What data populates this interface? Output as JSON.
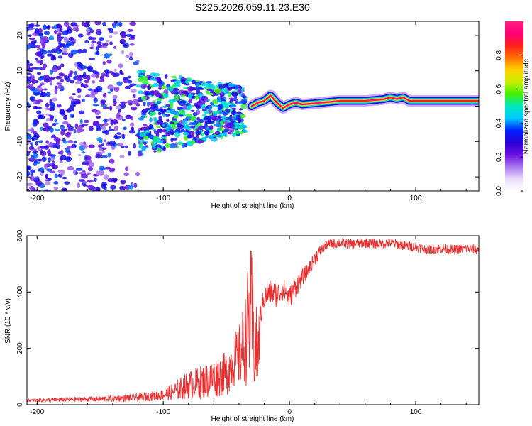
{
  "title": "S225.2026.059.11.23.E30",
  "chart_data": [
    {
      "type": "heatmap",
      "name": "spectrogram",
      "xlabel": "Height of straight line (km)",
      "ylabel": "Frequency (Hz)",
      "xlim": [
        -208,
        150
      ],
      "ylim": [
        -24,
        24
      ],
      "xticks": [
        -200,
        -100,
        0,
        100
      ],
      "xtick_labels": [
        "-200",
        "-100",
        "0",
        "100"
      ],
      "yticks": [
        -20,
        -10,
        0,
        10,
        20
      ],
      "ytick_labels": [
        "-20",
        "-10",
        "0",
        "10",
        "20"
      ],
      "colorbar": {
        "label": "Normalized spectral amplitude",
        "range": [
          0,
          1
        ],
        "ticks": [
          0.0,
          0.2,
          0.4,
          0.6,
          0.8
        ],
        "tick_labels": [
          "0.0",
          "0.2",
          "0.4",
          "0.6",
          "0.8"
        ],
        "colors": [
          "#ffffff",
          "#e9ddfb",
          "#a875f0",
          "#6a10e0",
          "#2a00d8",
          "#0020ff",
          "#00c8ff",
          "#00e8c0",
          "#40f000",
          "#c8f000",
          "#ffd000",
          "#ff7000",
          "#ff1e1e",
          "#ff0078",
          "#ff2080"
        ]
      },
      "ridge": {
        "description": "dominant frequency track",
        "x": [
          -30,
          -25,
          -20,
          -15,
          -10,
          -5,
          0,
          5,
          10,
          20,
          40,
          60,
          75,
          80,
          85,
          90,
          95,
          100,
          110,
          130,
          150
        ],
        "y": [
          0,
          1,
          1.5,
          3,
          1,
          -0.5,
          0.5,
          1,
          0.5,
          0.8,
          1.5,
          1.5,
          2,
          2.5,
          2,
          2.5,
          1.5,
          1.5,
          1.5,
          1.5,
          1.5
        ],
        "peak_amplitude": 0.95
      },
      "noise_regions": [
        {
          "x": [
            -208,
            -120
          ],
          "y": [
            -24,
            24
          ],
          "amplitude": 0.35
        },
        {
          "x": [
            -120,
            -35
          ],
          "y": [
            -14,
            10
          ],
          "amplitude": 0.5
        }
      ]
    },
    {
      "type": "line",
      "name": "snr",
      "xlabel": "Height of straight line (km)",
      "ylabel": "SNR (10 * v/v)",
      "xlim": [
        -208,
        150
      ],
      "ylim": [
        0,
        600
      ],
      "xticks": [
        -200,
        -100,
        0,
        100
      ],
      "xtick_labels": [
        "-200",
        "-100",
        "0",
        "100"
      ],
      "yticks": [
        0,
        200,
        400,
        600
      ],
      "ytick_labels": [
        "0",
        "200",
        "400",
        "600"
      ],
      "color": "#e83030",
      "x": [
        -208,
        -180,
        -150,
        -120,
        -100,
        -90,
        -80,
        -70,
        -60,
        -50,
        -45,
        -40,
        -35,
        -32,
        -30,
        -28,
        -25,
        -22,
        -20,
        -15,
        -10,
        -5,
        0,
        5,
        10,
        15,
        20,
        25,
        30,
        40,
        50,
        60,
        70,
        80,
        90,
        100,
        110,
        120,
        130,
        140,
        150
      ],
      "values": [
        15,
        18,
        20,
        25,
        35,
        50,
        70,
        80,
        95,
        110,
        150,
        170,
        230,
        300,
        320,
        220,
        180,
        350,
        380,
        400,
        390,
        410,
        380,
        420,
        450,
        480,
        520,
        550,
        570,
        575,
        570,
        575,
        570,
        575,
        565,
        560,
        550,
        555,
        550,
        555,
        550
      ],
      "noise": [
        5,
        8,
        10,
        14,
        20,
        35,
        50,
        60,
        70,
        80,
        90,
        110,
        160,
        240,
        240,
        180,
        140,
        40,
        40,
        45,
        45,
        40,
        40,
        40,
        30,
        25,
        25,
        20,
        18,
        18,
        18,
        18,
        18,
        18,
        18,
        18,
        18,
        18,
        18,
        18,
        18
      ]
    }
  ]
}
